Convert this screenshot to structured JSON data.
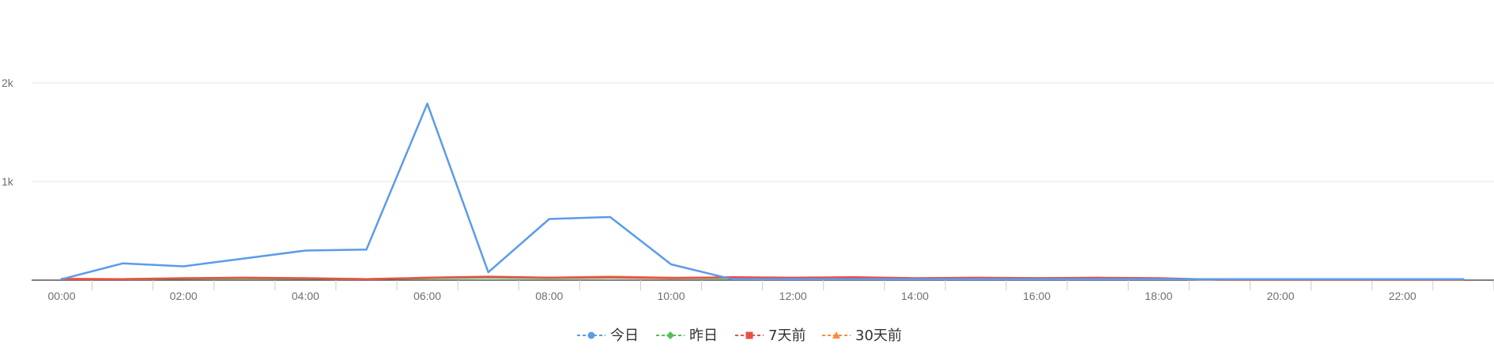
{
  "chart_data": {
    "type": "line",
    "title": "",
    "xlabel": "",
    "ylabel": "",
    "x": [
      "00:00",
      "01:00",
      "02:00",
      "03:00",
      "04:00",
      "05:00",
      "06:00",
      "07:00",
      "08:00",
      "09:00",
      "10:00",
      "11:00",
      "12:00",
      "13:00",
      "14:00",
      "15:00",
      "16:00",
      "17:00",
      "18:00",
      "19:00",
      "20:00",
      "21:00",
      "22:00",
      "23:00"
    ],
    "x_tick_labels": [
      "00:00",
      "02:00",
      "04:00",
      "06:00",
      "08:00",
      "10:00",
      "12:00",
      "14:00",
      "16:00",
      "18:00",
      "20:00",
      "22:00"
    ],
    "y_tick_labels": [
      "1k",
      "2k"
    ],
    "y_tick_values": [
      1000,
      2000
    ],
    "ylim": [
      0,
      2000
    ],
    "grid": true,
    "legend_position": "bottom-center",
    "series": [
      {
        "name": "今日",
        "color": "#5b9bea",
        "marker": "circle",
        "values": [
          10,
          170,
          140,
          220,
          300,
          310,
          1790,
          80,
          620,
          640,
          160,
          10,
          10,
          10,
          10,
          10,
          10,
          10,
          10,
          10,
          10,
          10,
          10,
          10
        ]
      },
      {
        "name": "昨日",
        "color": "#52c056",
        "marker": "diamond",
        "values": [
          10,
          10,
          15,
          20,
          15,
          10,
          20,
          25,
          20,
          25,
          20,
          20,
          20,
          20,
          15,
          20,
          20,
          20,
          15,
          5,
          5,
          5,
          5,
          5
        ]
      },
      {
        "name": "7天前",
        "color": "#ea4f47",
        "marker": "square",
        "values": [
          10,
          10,
          20,
          25,
          20,
          10,
          25,
          35,
          25,
          30,
          20,
          30,
          25,
          30,
          20,
          25,
          20,
          25,
          20,
          5,
          5,
          5,
          5,
          5
        ]
      },
      {
        "name": "30天前",
        "color": "#fb8b3c",
        "marker": "triangle",
        "values": [
          15,
          10,
          15,
          20,
          15,
          10,
          20,
          30,
          25,
          35,
          25,
          25,
          20,
          25,
          15,
          20,
          15,
          20,
          15,
          5,
          5,
          5,
          5,
          5
        ]
      }
    ]
  }
}
